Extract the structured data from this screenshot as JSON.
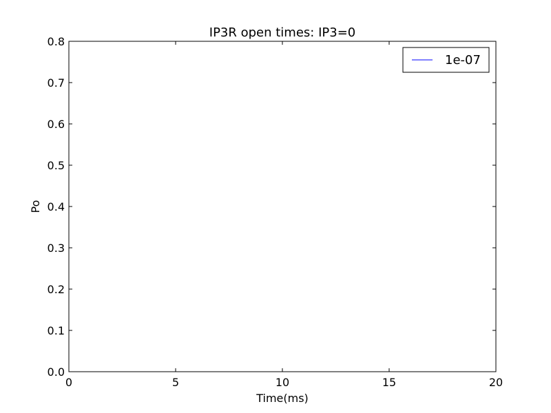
{
  "chart_data": {
    "type": "line",
    "title": "IP3R open times: IP3=0",
    "xlabel": "Time(ms)",
    "ylabel": "Po",
    "xlim": [
      0,
      20
    ],
    "ylim": [
      0,
      0.8
    ],
    "x_ticks": [
      0,
      5,
      10,
      15,
      20
    ],
    "x_tick_labels": [
      "0",
      "5",
      "10",
      "15",
      "20"
    ],
    "y_ticks": [
      0,
      0.1,
      0.2,
      0.3,
      0.4,
      0.5,
      0.6,
      0.7,
      0.8
    ],
    "y_tick_labels": [
      "0.0",
      "0.1",
      "0.2",
      "0.3",
      "0.4",
      "0.5",
      "0.6",
      "0.7",
      "0.8"
    ],
    "grid": false,
    "legend_position": "top-right",
    "series": [
      {
        "name": "1e-07",
        "color": "#0000ff",
        "x": [],
        "y": []
      }
    ]
  }
}
